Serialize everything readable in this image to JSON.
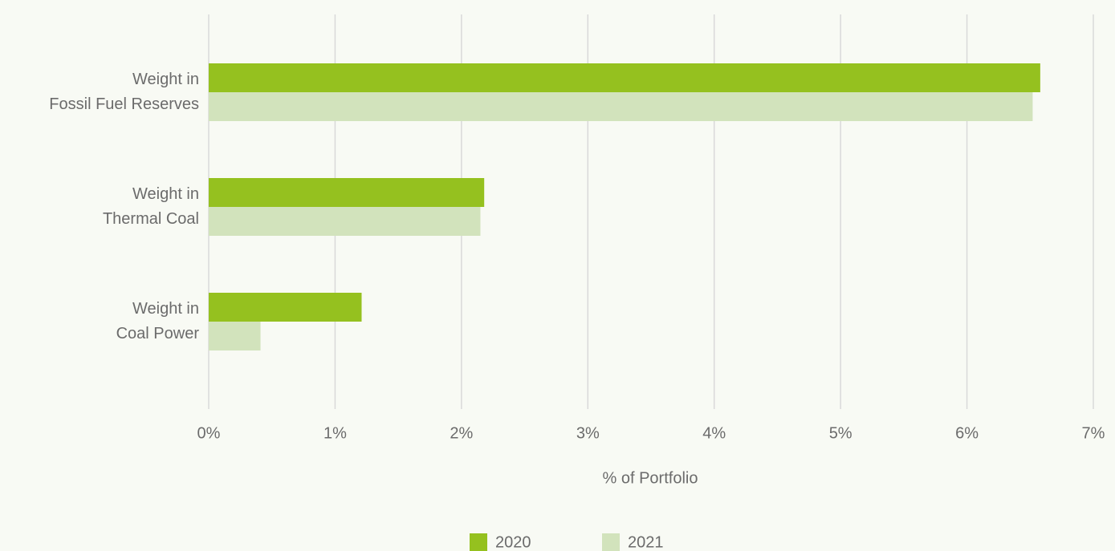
{
  "chart_data": {
    "type": "barh",
    "categories": [
      [
        "Weight in",
        "Fossil Fuel Reserves"
      ],
      [
        "Weight in",
        "Thermal Coal"
      ],
      [
        "Weight in",
        "Coal Power"
      ]
    ],
    "series": [
      {
        "name": "2020",
        "color": "#95c11f",
        "values": [
          6.58,
          2.18,
          1.21
        ]
      },
      {
        "name": "2021",
        "color": "#d2e3bc",
        "values": [
          6.52,
          2.15,
          0.41
        ]
      }
    ],
    "xlabel": "% of Portfolio",
    "xlim": [
      0,
      7
    ],
    "xticks": [
      {
        "value": 0,
        "label": "0%"
      },
      {
        "value": 1,
        "label": "1%"
      },
      {
        "value": 2,
        "label": "2%"
      },
      {
        "value": 3,
        "label": "3%"
      },
      {
        "value": 4,
        "label": "4%"
      },
      {
        "value": 5,
        "label": "5%"
      },
      {
        "value": 6,
        "label": "6%"
      },
      {
        "value": 7,
        "label": "7%"
      }
    ],
    "grid": true,
    "legend": "bottom"
  }
}
